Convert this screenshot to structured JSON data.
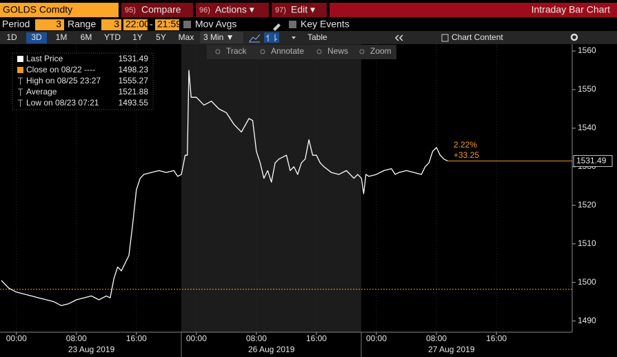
{
  "toolbar": {
    "security": "GOLDS Comdty",
    "buttons": [
      {
        "key": "95)",
        "label": "Compare"
      },
      {
        "key": "96)",
        "label": "Actions ▾"
      },
      {
        "key": "97)",
        "label": "Edit ▾"
      }
    ],
    "title": "Intraday Bar Chart"
  },
  "settings": {
    "period_label": "Period",
    "period": 3,
    "range_label": "Range",
    "range": 3,
    "start": "22:00",
    "separator": "-",
    "end": "21:59",
    "mov_avgs": "Mov Avgs",
    "key_events": "Key Events"
  },
  "ranges": [
    "1D",
    "3D",
    "1M",
    "6M",
    "YTD",
    "1Y",
    "5Y",
    "Max"
  ],
  "interval": "3 Min ▼",
  "table": "Table",
  "chart_content": "Chart Content",
  "tools": [
    "Track",
    "Annotate",
    "News",
    "Zoom"
  ],
  "chart_data": {
    "type": "line",
    "legend": [
      {
        "label": "Last Price",
        "value": 1531.49
      },
      {
        "label": "Close on 08/22 ----",
        "value": 1498.23
      },
      {
        "label": "High on 08/25 23:27",
        "value": 1555.27
      },
      {
        "label": "Average",
        "value": 1521.88
      },
      {
        "label": "Low on 08/23 07:21",
        "value": 1493.55
      }
    ],
    "annotations": [
      "2.22%",
      "+33.25"
    ],
    "x": [
      0,
      1,
      2,
      3,
      4,
      5,
      6,
      7,
      8,
      9,
      10,
      11,
      12,
      13,
      14,
      14.5,
      15,
      15.5,
      16,
      16.5,
      17,
      17.5,
      18,
      18.5,
      19,
      20,
      21,
      22,
      23,
      23.5,
      24,
      24.5,
      24.8,
      25,
      25.3,
      26,
      27,
      28,
      29,
      30,
      31,
      32,
      33,
      33.5,
      34,
      34.5,
      35,
      35.5,
      36,
      36.5,
      37,
      38,
      38.5,
      39,
      39.5,
      40,
      40.5,
      41,
      41.5,
      42,
      42.5,
      43,
      44,
      45,
      46,
      47,
      47.5,
      48,
      48.3,
      48.6,
      49,
      50,
      51,
      52,
      52.5,
      53,
      54,
      55,
      56,
      56.5,
      57,
      57.5,
      58,
      58.5,
      59,
      59.5
    ],
    "series": [
      {
        "name": "Last Price",
        "color": "#ffffff",
        "values": [
          1500.5,
          1498.5,
          1497.5,
          1497,
          1496.5,
          1496,
          1495.5,
          1495,
          1494,
          1494.5,
          1495.5,
          1496,
          1496.5,
          1495.5,
          1496.5,
          1496,
          1501,
          1504,
          1503,
          1505,
          1507,
          1515,
          1524,
          1527,
          1528,
          1528.5,
          1529,
          1528.5,
          1529,
          1527.5,
          1528,
          1533,
          1533,
          1555,
          1548,
          1548,
          1546,
          1547,
          1545,
          1544,
          1541,
          1539,
          1542.5,
          1542,
          1534,
          1531,
          1527,
          1529,
          1526,
          1531,
          1532,
          1533,
          1529,
          1530,
          1528,
          1531,
          1532,
          1537,
          1533,
          1533,
          1531,
          1530,
          1528.5,
          1528,
          1529,
          1527,
          1528,
          1527,
          1523,
          1528,
          1527.5,
          1528,
          1529,
          1529.5,
          1528,
          1528.5,
          1529,
          1528.5,
          1528,
          1530,
          1531,
          1534,
          1535,
          1533,
          1532,
          1531.5
        ]
      }
    ],
    "last_color": "#f39a1e",
    "close_color": "#f39a1e",
    "xlim": [
      0,
      76.1
    ],
    "ylim": [
      1487.1,
      1561.8
    ],
    "yticks": [
      1490,
      1500,
      1510,
      1520,
      1530,
      1540,
      1550,
      1560
    ],
    "xticks": [
      {
        "value": 2,
        "label": "00:00"
      },
      {
        "value": 10,
        "label": "08:00"
      },
      {
        "value": 18,
        "label": "16:00"
      },
      {
        "value": 26,
        "label": "00:00"
      },
      {
        "value": 34,
        "label": "08:00"
      },
      {
        "value": 42,
        "label": "16:00"
      },
      {
        "value": 50,
        "label": "00:00"
      },
      {
        "value": 58,
        "label": "08:00"
      },
      {
        "value": 66,
        "label": "16:00"
      }
    ],
    "day_labels": [
      {
        "value": 12,
        "label": "23 Aug 2019"
      },
      {
        "value": 36,
        "label": "26 Aug 2019"
      },
      {
        "value": 60,
        "label": "27 Aug 2019"
      }
    ]
  }
}
